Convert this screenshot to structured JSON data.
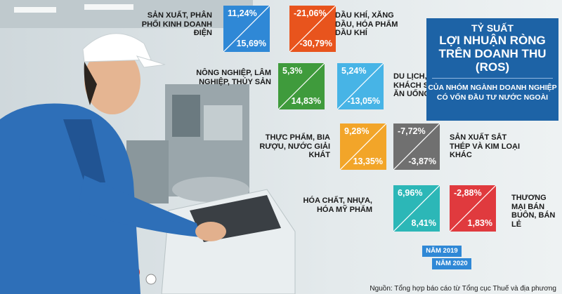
{
  "header": {
    "line1": "TỶ SUẤT",
    "line2": "LỢI NHUẬN RÒNG TRÊN DOANH THU (ROS)",
    "line3": "CỦA NHÓM NGÀNH DOANH NGHIỆP CÓ VỐN ĐẦU TƯ NƯỚC NGOÀI"
  },
  "sectors": [
    {
      "label": "SẢN XUẤT, PHÂN PHỐI KINH DOANH ĐIỆN",
      "v2019": "11,24%",
      "v2020": "15,69%",
      "color": "#2f88d6"
    },
    {
      "label": "DẦU KHÍ, XĂNG DẦU, HÓA PHẨM DẦU KHÍ",
      "v2019": "-21,06%",
      "v2020": "-30,79%",
      "color": "#e8541d"
    },
    {
      "label": "NÔNG NGHIỆP, LÂM NGHIỆP, THỦY SẢN",
      "v2019": "5,3%",
      "v2020": "14,83%",
      "color": "#3f9b3c"
    },
    {
      "label": "DU LỊCH, KHÁCH SẠN, ĂN UỐNG",
      "v2019": "5,24%",
      "v2020": "-13,05%",
      "color": "#47b4e6"
    },
    {
      "label": "THỰC PHẨM, BIA RƯỢU, NƯỚC GIẢI KHÁT",
      "v2019": "9,28%",
      "v2020": "13,35%",
      "color": "#f2a529"
    },
    {
      "label": "SẢN XUẤT SẮT THÉP VÀ KIM LOẠI KHÁC",
      "v2019": "-7,72%",
      "v2020": "-3,87%",
      "color": "#707070"
    },
    {
      "label": "HÓA CHẤT, NHỰA, HÓA MỸ PHẨM",
      "v2019": "6,96%",
      "v2020": "8,41%",
      "color": "#2cb7b7"
    },
    {
      "label": "THƯƠNG MẠI BÁN BUÔN, BÁN LẺ",
      "v2019": "-2,88%",
      "v2020": "1,83%",
      "color": "#e03a3e"
    }
  ],
  "legend": {
    "year2019": "NĂM 2019",
    "year2020": "NĂM 2020"
  },
  "source": "Nguồn: Tổng hợp báo cáo từ Tổng cục Thuế và địa phương",
  "colors": {
    "title_bg": "#1d63a6",
    "legend_bg": "#2f88d6"
  }
}
